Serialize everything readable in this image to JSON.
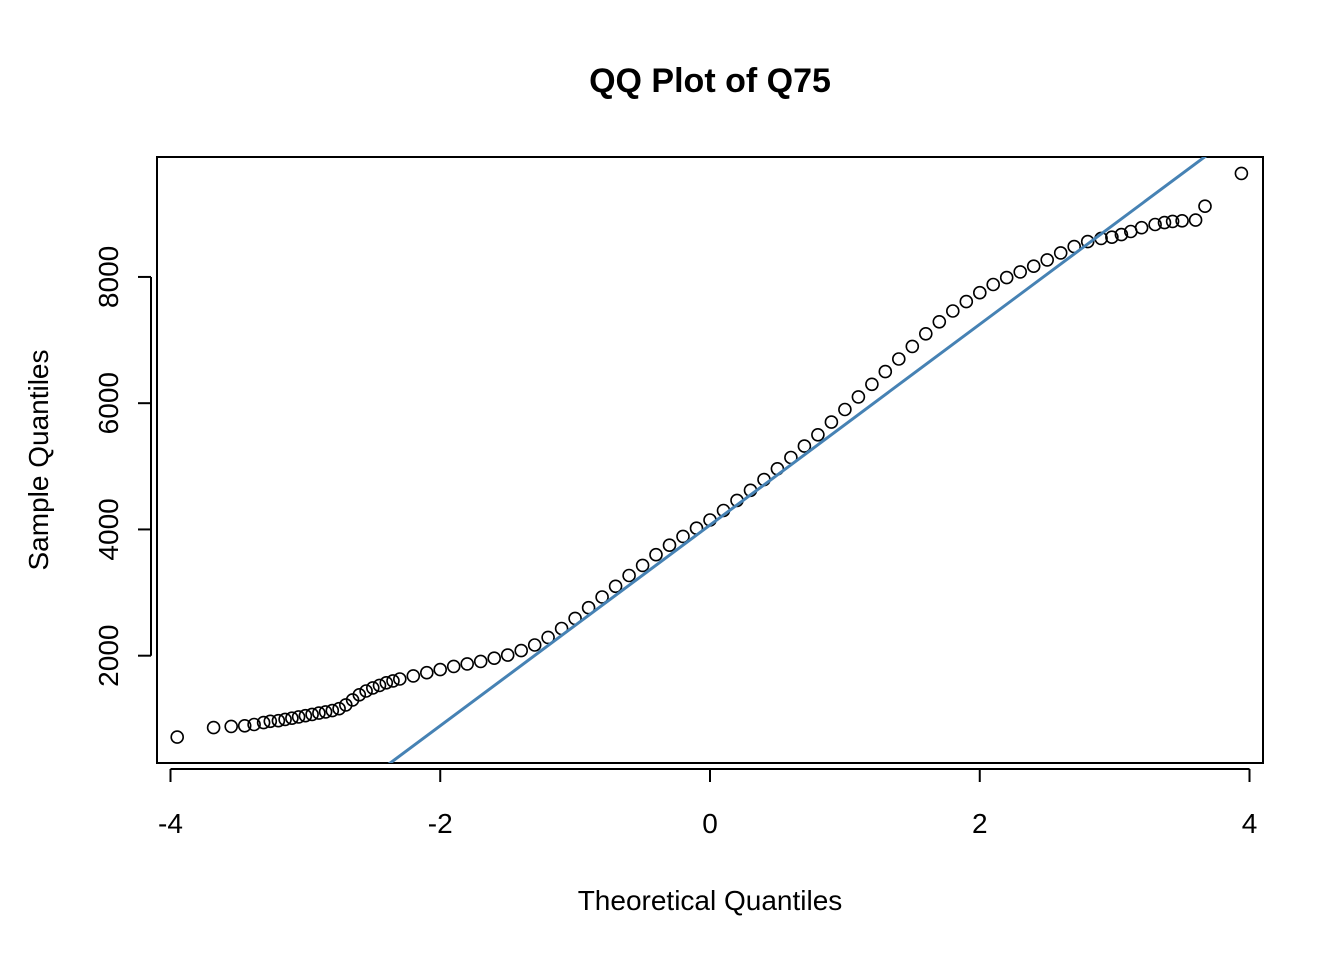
{
  "chart_data": {
    "type": "scatter",
    "title": "QQ Plot of Q75",
    "xlabel": "Theoretical Quantiles",
    "ylabel": "Sample Quantiles",
    "xlim": [
      -4.1,
      4.1
    ],
    "ylim": [
      300,
      9900
    ],
    "x_ticks": [
      -4,
      -2,
      0,
      2,
      4
    ],
    "x_tick_labels": [
      "-4",
      "-2",
      "0",
      "2",
      "4"
    ],
    "y_ticks": [
      2000,
      4000,
      6000,
      8000
    ],
    "y_tick_labels": [
      "2000",
      "4000",
      "6000",
      "8000"
    ],
    "grid": false,
    "legend": "none",
    "colors": {
      "points": "#000000",
      "reference_line": "#4682B4",
      "frame": "#000000"
    },
    "series": [
      {
        "marker": "open-circle",
        "points": [
          [
            -3.95,
            710
          ],
          [
            -3.68,
            860
          ],
          [
            -3.55,
            880
          ],
          [
            -3.45,
            890
          ],
          [
            -3.38,
            910
          ],
          [
            -3.31,
            940
          ],
          [
            -3.26,
            960
          ],
          [
            -3.2,
            970
          ],
          [
            -3.15,
            990
          ],
          [
            -3.1,
            1010
          ],
          [
            -3.05,
            1030
          ],
          [
            -3.0,
            1050
          ],
          [
            -2.95,
            1070
          ],
          [
            -2.9,
            1090
          ],
          [
            -2.85,
            1110
          ],
          [
            -2.8,
            1130
          ],
          [
            -2.75,
            1160
          ],
          [
            -2.7,
            1220
          ],
          [
            -2.65,
            1300
          ],
          [
            -2.6,
            1380
          ],
          [
            -2.55,
            1440
          ],
          [
            -2.5,
            1490
          ],
          [
            -2.45,
            1530
          ],
          [
            -2.4,
            1570
          ],
          [
            -2.35,
            1600
          ],
          [
            -2.3,
            1630
          ],
          [
            -2.2,
            1680
          ],
          [
            -2.1,
            1730
          ],
          [
            -2.0,
            1780
          ],
          [
            -1.9,
            1830
          ],
          [
            -1.8,
            1870
          ],
          [
            -1.7,
            1910
          ],
          [
            -1.6,
            1960
          ],
          [
            -1.5,
            2010
          ],
          [
            -1.4,
            2080
          ],
          [
            -1.3,
            2170
          ],
          [
            -1.2,
            2290
          ],
          [
            -1.1,
            2430
          ],
          [
            -1.0,
            2590
          ],
          [
            -0.9,
            2760
          ],
          [
            -0.8,
            2930
          ],
          [
            -0.7,
            3100
          ],
          [
            -0.6,
            3270
          ],
          [
            -0.5,
            3430
          ],
          [
            -0.4,
            3600
          ],
          [
            -0.3,
            3750
          ],
          [
            -0.2,
            3890
          ],
          [
            -0.1,
            4020
          ],
          [
            0.0,
            4150
          ],
          [
            0.1,
            4300
          ],
          [
            0.2,
            4460
          ],
          [
            0.3,
            4620
          ],
          [
            0.4,
            4790
          ],
          [
            0.5,
            4960
          ],
          [
            0.6,
            5140
          ],
          [
            0.7,
            5320
          ],
          [
            0.8,
            5500
          ],
          [
            0.9,
            5700
          ],
          [
            1.0,
            5900
          ],
          [
            1.1,
            6100
          ],
          [
            1.2,
            6300
          ],
          [
            1.3,
            6500
          ],
          [
            1.4,
            6700
          ],
          [
            1.5,
            6900
          ],
          [
            1.6,
            7100
          ],
          [
            1.7,
            7290
          ],
          [
            1.8,
            7460
          ],
          [
            1.9,
            7610
          ],
          [
            2.0,
            7750
          ],
          [
            2.1,
            7880
          ],
          [
            2.2,
            7990
          ],
          [
            2.3,
            8080
          ],
          [
            2.4,
            8170
          ],
          [
            2.5,
            8270
          ],
          [
            2.6,
            8380
          ],
          [
            2.7,
            8480
          ],
          [
            2.8,
            8560
          ],
          [
            2.9,
            8610
          ],
          [
            2.98,
            8630
          ],
          [
            3.05,
            8670
          ],
          [
            3.12,
            8720
          ],
          [
            3.2,
            8780
          ],
          [
            3.3,
            8830
          ],
          [
            3.37,
            8860
          ],
          [
            3.43,
            8880
          ],
          [
            3.5,
            8890
          ],
          [
            3.6,
            8900
          ],
          [
            3.67,
            9120
          ],
          [
            3.94,
            9640
          ]
        ]
      }
    ],
    "reference_line": {
      "intercept": 4070,
      "slope": 1590
    }
  }
}
